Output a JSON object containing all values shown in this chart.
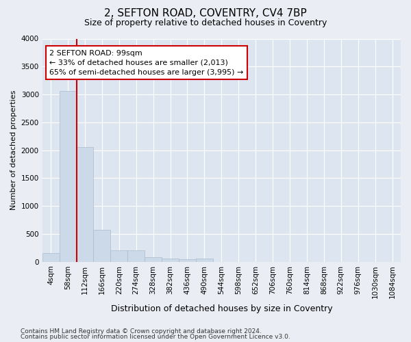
{
  "title1": "2, SEFTON ROAD, COVENTRY, CV4 7BP",
  "title2": "Size of property relative to detached houses in Coventry",
  "xlabel": "Distribution of detached houses by size in Coventry",
  "ylabel": "Number of detached properties",
  "bar_labels": [
    "4sqm",
    "58sqm",
    "112sqm",
    "166sqm",
    "220sqm",
    "274sqm",
    "328sqm",
    "382sqm",
    "436sqm",
    "490sqm",
    "544sqm",
    "598sqm",
    "652sqm",
    "706sqm",
    "760sqm",
    "814sqm",
    "868sqm",
    "922sqm",
    "976sqm",
    "1030sqm",
    "1084sqm"
  ],
  "bar_values": [
    150,
    3060,
    2060,
    570,
    205,
    205,
    78,
    60,
    50,
    55,
    0,
    0,
    0,
    0,
    0,
    0,
    0,
    0,
    0,
    0,
    0
  ],
  "bar_color": "#ccd9e8",
  "bar_edge_color": "#aabcce",
  "annotation_text": "2 SEFTON ROAD: 99sqm\n← 33% of detached houses are smaller (2,013)\n65% of semi-detached houses are larger (3,995) →",
  "annotation_box_color": "#ffffff",
  "annotation_box_edge": "#cc0000",
  "red_line_color": "#cc0000",
  "red_line_x": 1.5,
  "ylim": [
    0,
    4000
  ],
  "yticks": [
    0,
    500,
    1000,
    1500,
    2000,
    2500,
    3000,
    3500,
    4000
  ],
  "footer1": "Contains HM Land Registry data © Crown copyright and database right 2024.",
  "footer2": "Contains public sector information licensed under the Open Government Licence v3.0.",
  "bg_color": "#eaeef4",
  "plot_bg_color": "#dde5f0",
  "title1_fontsize": 11,
  "title2_fontsize": 9,
  "xlabel_fontsize": 9,
  "ylabel_fontsize": 8,
  "tick_fontsize": 7.5,
  "footer_fontsize": 6.5
}
